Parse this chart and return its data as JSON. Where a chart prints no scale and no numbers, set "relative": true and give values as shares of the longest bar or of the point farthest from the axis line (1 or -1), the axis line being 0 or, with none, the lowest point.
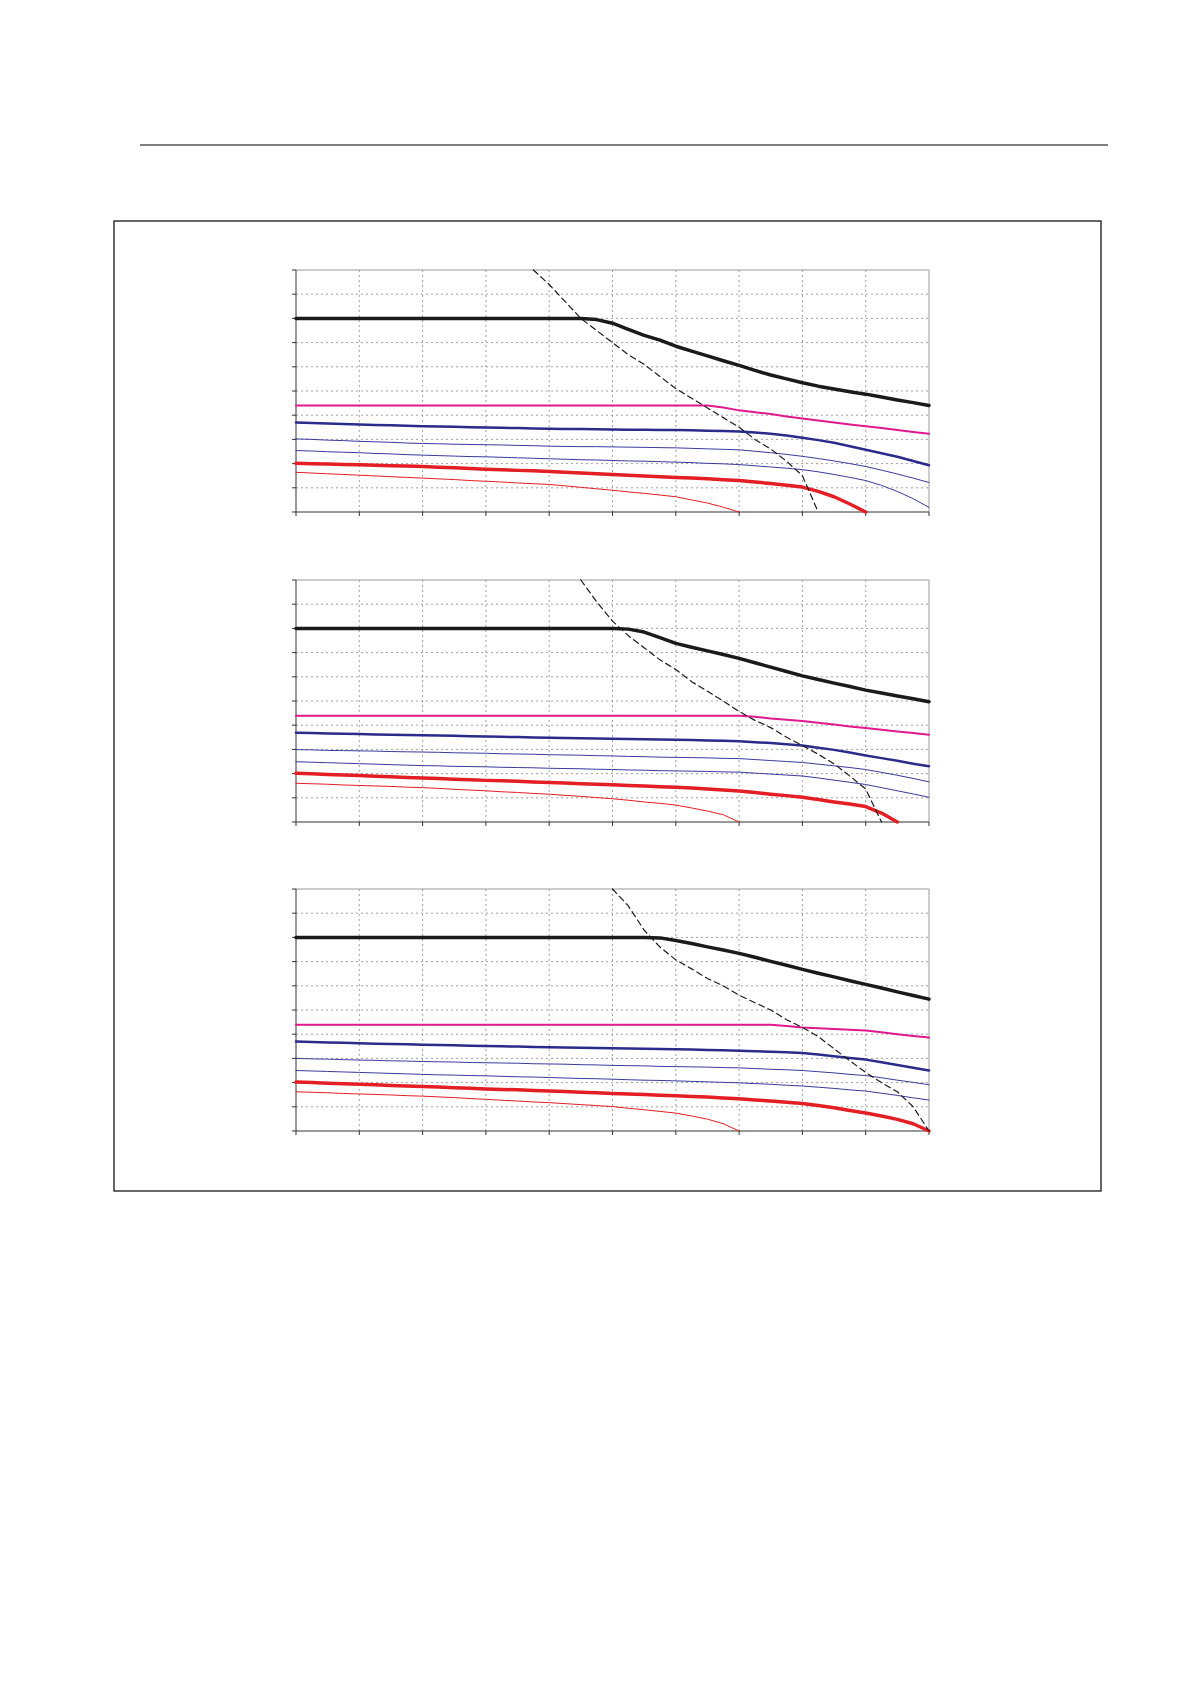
{
  "chart_data": [
    {
      "type": "line",
      "relative": true,
      "grid": true,
      "categories": [
        null,
        null,
        null,
        null,
        null,
        null,
        null,
        null,
        null,
        null,
        null,
        null,
        null,
        null,
        null,
        null,
        null,
        null,
        null,
        null,
        null,
        null,
        null,
        null,
        null,
        null,
        null,
        null,
        null,
        null,
        null,
        null,
        null,
        null,
        null,
        null,
        null,
        null,
        null,
        null,
        null
      ],
      "series": [
        {
          "color": "#1a1a1a",
          "values": [
            0.8,
            0.8,
            0.8,
            0.8,
            0.8,
            0.8,
            0.8,
            0.8,
            0.8,
            0.8,
            0.8,
            0.8,
            0.8,
            0.8,
            0.8,
            0.8,
            0.8,
            0.8,
            0.8,
            0.795,
            0.78,
            0.755,
            0.73,
            0.71,
            0.685,
            0.665,
            0.645,
            0.625,
            0.606,
            0.585,
            0.566,
            0.55,
            0.534,
            0.52,
            0.508,
            0.497,
            0.487,
            0.475,
            0.463,
            0.452,
            0.44
          ]
        },
        {
          "color": "#e0198c",
          "values": [
            0.44,
            0.44,
            0.44,
            0.44,
            0.44,
            0.44,
            0.44,
            0.44,
            0.44,
            0.44,
            0.44,
            0.44,
            0.44,
            0.44,
            0.44,
            0.44,
            0.44,
            0.44,
            0.44,
            0.44,
            0.44,
            0.44,
            0.44,
            0.44,
            0.44,
            0.44,
            0.44,
            0.432,
            0.42,
            0.412,
            0.405,
            0.395,
            0.386,
            0.378,
            0.37,
            0.362,
            0.354,
            0.347,
            0.339,
            0.331,
            0.323
          ]
        },
        {
          "color": "#2b2b8c",
          "values": [
            0.37,
            0.368,
            0.366,
            0.364,
            0.362,
            0.36,
            0.358,
            0.356,
            0.354,
            0.353,
            0.352,
            0.35,
            0.349,
            0.348,
            0.347,
            0.345,
            0.344,
            0.343,
            0.343,
            0.342,
            0.341,
            0.34,
            0.34,
            0.339,
            0.339,
            0.338,
            0.336,
            0.335,
            0.333,
            0.329,
            0.323,
            0.316,
            0.307,
            0.297,
            0.286,
            0.272,
            0.257,
            0.243,
            0.228,
            0.211,
            0.193
          ]
        },
        {
          "color": "#3a3a9a",
          "values": [
            0.302,
            0.3,
            0.297,
            0.295,
            0.292,
            0.29,
            0.288,
            0.285,
            0.283,
            0.282,
            0.28,
            0.279,
            0.278,
            0.277,
            0.275,
            0.274,
            0.272,
            0.271,
            0.27,
            0.27,
            0.269,
            0.268,
            0.267,
            0.266,
            0.265,
            0.263,
            0.261,
            0.259,
            0.257,
            0.251,
            0.245,
            0.238,
            0.23,
            0.221,
            0.211,
            0.2,
            0.188,
            0.173,
            0.157,
            0.14,
            0.122
          ]
        },
        {
          "color": "#3a3a9a",
          "values": [
            0.254,
            0.252,
            0.249,
            0.247,
            0.245,
            0.242,
            0.24,
            0.237,
            0.235,
            0.233,
            0.231,
            0.229,
            0.228,
            0.226,
            0.224,
            0.222,
            0.22,
            0.218,
            0.216,
            0.215,
            0.213,
            0.211,
            0.21,
            0.208,
            0.206,
            0.204,
            0.201,
            0.199,
            0.196,
            0.191,
            0.186,
            0.181,
            0.175,
            0.166,
            0.155,
            0.143,
            0.13,
            0.11,
            0.085,
            0.055,
            0.019
          ]
        },
        {
          "color": "#e31e24",
          "values": [
            0.201,
            0.199,
            0.198,
            0.196,
            0.195,
            0.193,
            0.191,
            0.19,
            0.188,
            0.185,
            0.183,
            0.18,
            0.177,
            0.175,
            0.172,
            0.17,
            0.167,
            0.164,
            0.161,
            0.158,
            0.155,
            0.152,
            0.149,
            0.146,
            0.143,
            0.14,
            0.137,
            0.133,
            0.13,
            0.124,
            0.118,
            0.111,
            0.103,
            0.085,
            0.063,
            0.033,
            0,
            null,
            null,
            null,
            null
          ]
        },
        {
          "color": "#e31e24",
          "values": [
            0.164,
            0.161,
            0.158,
            0.155,
            0.152,
            0.149,
            0.146,
            0.143,
            0.14,
            0.137,
            0.134,
            0.13,
            0.127,
            0.124,
            0.12,
            0.117,
            0.114,
            0.108,
            0.102,
            0.096,
            0.09,
            0.083,
            0.077,
            0.07,
            0.063,
            0.05,
            0.037,
            0.02,
            0,
            null,
            null,
            null,
            null,
            null,
            null,
            null,
            null,
            null,
            null,
            null,
            null
          ]
        },
        {
          "color": "#1a1a1a",
          "line_style": "dashed",
          "values": [
            null,
            null,
            null,
            null,
            null,
            null,
            null,
            null,
            null,
            null,
            null,
            null,
            null,
            null,
            null,
            1.0,
            0.94,
            0.87,
            0.8,
            0.75,
            0.7,
            0.65,
            0.61,
            0.56,
            0.51,
            0.47,
            0.43,
            0.39,
            0.35,
            0.3,
            0.26,
            0.21,
            0.15,
            0,
            null,
            null,
            null,
            null,
            null,
            null,
            null
          ]
        }
      ]
    },
    {
      "type": "line",
      "relative": true,
      "grid": true,
      "categories": [
        null,
        null,
        null,
        null,
        null,
        null,
        null,
        null,
        null,
        null,
        null,
        null,
        null,
        null,
        null,
        null,
        null,
        null,
        null,
        null,
        null,
        null,
        null,
        null,
        null,
        null,
        null,
        null,
        null,
        null,
        null,
        null,
        null,
        null,
        null,
        null,
        null,
        null,
        null,
        null,
        null
      ],
      "series": [
        {
          "color": "#1a1a1a",
          "values": [
            0.8,
            0.8,
            0.8,
            0.8,
            0.8,
            0.8,
            0.8,
            0.8,
            0.8,
            0.8,
            0.8,
            0.8,
            0.8,
            0.8,
            0.8,
            0.8,
            0.8,
            0.8,
            0.8,
            0.8,
            0.8,
            0.797,
            0.785,
            0.762,
            0.738,
            0.722,
            0.707,
            0.692,
            0.676,
            0.658,
            0.64,
            0.622,
            0.604,
            0.589,
            0.574,
            0.56,
            0.545,
            0.533,
            0.521,
            0.509,
            0.497
          ]
        },
        {
          "color": "#e0198c",
          "values": [
            0.439,
            0.439,
            0.439,
            0.439,
            0.439,
            0.439,
            0.439,
            0.439,
            0.439,
            0.439,
            0.439,
            0.439,
            0.439,
            0.439,
            0.439,
            0.439,
            0.439,
            0.439,
            0.439,
            0.439,
            0.439,
            0.439,
            0.439,
            0.439,
            0.439,
            0.439,
            0.439,
            0.439,
            0.439,
            0.435,
            0.428,
            0.423,
            0.417,
            0.41,
            0.403,
            0.395,
            0.388,
            0.381,
            0.374,
            0.368,
            0.361
          ]
        },
        {
          "color": "#2b2b8c",
          "values": [
            0.369,
            0.368,
            0.366,
            0.365,
            0.364,
            0.362,
            0.361,
            0.359,
            0.358,
            0.357,
            0.356,
            0.354,
            0.353,
            0.352,
            0.351,
            0.349,
            0.348,
            0.347,
            0.346,
            0.345,
            0.344,
            0.343,
            0.342,
            0.341,
            0.34,
            0.339,
            0.337,
            0.336,
            0.334,
            0.33,
            0.326,
            0.321,
            0.316,
            0.307,
            0.298,
            0.287,
            0.275,
            0.264,
            0.253,
            0.241,
            0.23
          ]
        },
        {
          "color": "#3a3a9a",
          "values": [
            0.299,
            0.298,
            0.296,
            0.295,
            0.294,
            0.293,
            0.291,
            0.29,
            0.289,
            0.288,
            0.286,
            0.285,
            0.284,
            0.282,
            0.281,
            0.28,
            0.278,
            0.277,
            0.276,
            0.274,
            0.273,
            0.271,
            0.27,
            0.268,
            0.267,
            0.266,
            0.265,
            0.263,
            0.262,
            0.258,
            0.254,
            0.25,
            0.246,
            0.239,
            0.232,
            0.225,
            0.217,
            0.205,
            0.193,
            0.18,
            0.166
          ]
        },
        {
          "color": "#3a3a9a",
          "values": [
            0.249,
            0.247,
            0.245,
            0.243,
            0.241,
            0.239,
            0.237,
            0.235,
            0.233,
            0.232,
            0.23,
            0.229,
            0.228,
            0.226,
            0.225,
            0.224,
            0.222,
            0.221,
            0.22,
            0.218,
            0.217,
            0.215,
            0.214,
            0.212,
            0.211,
            0.21,
            0.209,
            0.207,
            0.206,
            0.202,
            0.198,
            0.194,
            0.19,
            0.182,
            0.173,
            0.164,
            0.155,
            0.142,
            0.129,
            0.116,
            0.102
          ]
        },
        {
          "color": "#e31e24",
          "values": [
            0.201,
            0.199,
            0.196,
            0.194,
            0.192,
            0.189,
            0.187,
            0.184,
            0.182,
            0.18,
            0.177,
            0.175,
            0.172,
            0.17,
            0.168,
            0.165,
            0.163,
            0.161,
            0.158,
            0.156,
            0.154,
            0.151,
            0.149,
            0.146,
            0.144,
            0.14,
            0.136,
            0.132,
            0.128,
            0.122,
            0.115,
            0.109,
            0.102,
            0.093,
            0.083,
            0.074,
            0.064,
            0.037,
            0,
            null,
            null
          ]
        },
        {
          "color": "#e31e24",
          "values": [
            0.16,
            0.158,
            0.156,
            0.153,
            0.151,
            0.149,
            0.147,
            0.144,
            0.142,
            0.139,
            0.135,
            0.132,
            0.129,
            0.125,
            0.122,
            0.118,
            0.115,
            0.11,
            0.106,
            0.101,
            0.096,
            0.09,
            0.083,
            0.077,
            0.07,
            0.058,
            0.045,
            0.03,
            0,
            null,
            null,
            null,
            null,
            null,
            null,
            null,
            null,
            null,
            null,
            null,
            null
          ]
        },
        {
          "color": "#1a1a1a",
          "line_style": "dashed",
          "values": [
            null,
            null,
            null,
            null,
            null,
            null,
            null,
            null,
            null,
            null,
            null,
            null,
            null,
            null,
            null,
            null,
            null,
            null,
            1.0,
            0.91,
            0.83,
            0.77,
            0.72,
            0.67,
            0.63,
            0.58,
            0.54,
            0.5,
            0.457,
            0.42,
            0.39,
            0.35,
            0.316,
            0.28,
            0.24,
            0.19,
            0.136,
            0,
            null,
            null,
            null
          ]
        }
      ]
    },
    {
      "type": "line",
      "relative": true,
      "grid": true,
      "categories": [
        null,
        null,
        null,
        null,
        null,
        null,
        null,
        null,
        null,
        null,
        null,
        null,
        null,
        null,
        null,
        null,
        null,
        null,
        null,
        null,
        null,
        null,
        null,
        null,
        null,
        null,
        null,
        null,
        null,
        null,
        null,
        null,
        null,
        null,
        null,
        null,
        null,
        null,
        null,
        null,
        null
      ],
      "series": [
        {
          "color": "#1a1a1a",
          "values": [
            0.8,
            0.8,
            0.8,
            0.8,
            0.8,
            0.8,
            0.8,
            0.8,
            0.8,
            0.8,
            0.8,
            0.8,
            0.8,
            0.8,
            0.8,
            0.8,
            0.8,
            0.8,
            0.8,
            0.8,
            0.8,
            0.8,
            0.8,
            0.798,
            0.787,
            0.775,
            0.761,
            0.748,
            0.734,
            0.718,
            0.701,
            0.685,
            0.668,
            0.652,
            0.637,
            0.621,
            0.606,
            0.591,
            0.575,
            0.56,
            0.545
          ]
        },
        {
          "color": "#e0198c",
          "values": [
            0.439,
            0.439,
            0.439,
            0.439,
            0.439,
            0.439,
            0.439,
            0.439,
            0.439,
            0.439,
            0.439,
            0.439,
            0.439,
            0.439,
            0.439,
            0.439,
            0.439,
            0.439,
            0.439,
            0.439,
            0.439,
            0.439,
            0.439,
            0.439,
            0.439,
            0.439,
            0.439,
            0.439,
            0.439,
            0.439,
            0.439,
            0.434,
            0.428,
            0.425,
            0.421,
            0.418,
            0.415,
            0.408,
            0.4,
            0.393,
            0.386
          ]
        },
        {
          "color": "#2b2b8c",
          "values": [
            0.37,
            0.368,
            0.366,
            0.365,
            0.363,
            0.361,
            0.359,
            0.358,
            0.356,
            0.355,
            0.354,
            0.352,
            0.351,
            0.35,
            0.349,
            0.347,
            0.346,
            0.345,
            0.344,
            0.343,
            0.342,
            0.341,
            0.34,
            0.339,
            0.338,
            0.337,
            0.335,
            0.334,
            0.332,
            0.33,
            0.327,
            0.325,
            0.322,
            0.316,
            0.309,
            0.302,
            0.295,
            0.284,
            0.273,
            0.261,
            0.25
          ]
        },
        {
          "color": "#3a3a9a",
          "values": [
            0.3,
            0.298,
            0.297,
            0.295,
            0.293,
            0.292,
            0.29,
            0.289,
            0.287,
            0.286,
            0.285,
            0.283,
            0.282,
            0.281,
            0.28,
            0.278,
            0.277,
            0.276,
            0.274,
            0.273,
            0.271,
            0.27,
            0.269,
            0.267,
            0.266,
            0.265,
            0.264,
            0.262,
            0.261,
            0.258,
            0.255,
            0.253,
            0.25,
            0.245,
            0.24,
            0.234,
            0.229,
            0.22,
            0.21,
            0.201,
            0.191
          ]
        },
        {
          "color": "#3a3a9a",
          "values": [
            0.25,
            0.248,
            0.246,
            0.244,
            0.242,
            0.24,
            0.238,
            0.236,
            0.234,
            0.232,
            0.231,
            0.229,
            0.228,
            0.226,
            0.224,
            0.223,
            0.221,
            0.219,
            0.217,
            0.216,
            0.214,
            0.212,
            0.21,
            0.209,
            0.207,
            0.205,
            0.203,
            0.201,
            0.199,
            0.196,
            0.193,
            0.189,
            0.186,
            0.181,
            0.176,
            0.17,
            0.165,
            0.156,
            0.147,
            0.137,
            0.128
          ]
        },
        {
          "color": "#e31e24",
          "values": [
            0.202,
            0.2,
            0.197,
            0.195,
            0.193,
            0.191,
            0.188,
            0.186,
            0.184,
            0.182,
            0.179,
            0.177,
            0.174,
            0.172,
            0.17,
            0.167,
            0.165,
            0.163,
            0.16,
            0.158,
            0.155,
            0.153,
            0.151,
            0.148,
            0.146,
            0.143,
            0.14,
            0.136,
            0.133,
            0.128,
            0.124,
            0.119,
            0.114,
            0.105,
            0.096,
            0.085,
            0.074,
            0.062,
            0.048,
            0.03,
            0
          ]
        },
        {
          "color": "#e31e24",
          "values": [
            0.162,
            0.16,
            0.158,
            0.155,
            0.153,
            0.151,
            0.149,
            0.146,
            0.144,
            0.141,
            0.138,
            0.134,
            0.131,
            0.127,
            0.124,
            0.12,
            0.117,
            0.113,
            0.109,
            0.105,
            0.101,
            0.094,
            0.088,
            0.081,
            0.074,
            0.062,
            0.049,
            0.03,
            0,
            null,
            null,
            null,
            null,
            null,
            null,
            null,
            null,
            null,
            null,
            null,
            null
          ]
        },
        {
          "color": "#1a1a1a",
          "line_style": "dashed",
          "values": [
            null,
            null,
            null,
            null,
            null,
            null,
            null,
            null,
            null,
            null,
            null,
            null,
            null,
            null,
            null,
            null,
            null,
            null,
            null,
            null,
            1.0,
            0.93,
            0.83,
            0.76,
            0.707,
            0.67,
            0.63,
            0.6,
            0.561,
            0.53,
            0.5,
            0.46,
            0.428,
            0.39,
            0.34,
            0.29,
            0.242,
            0.2,
            0.162,
            0.1,
            0
          ]
        }
      ]
    }
  ]
}
